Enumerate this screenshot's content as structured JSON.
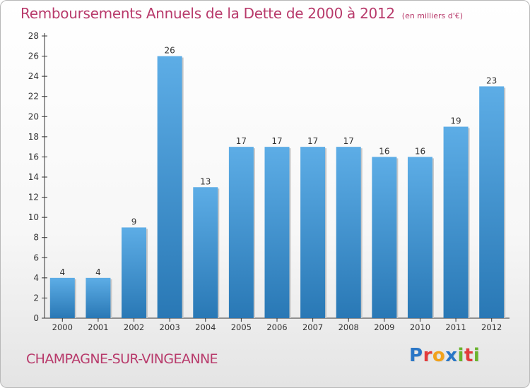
{
  "title": "Remboursements Annuels de la Dette de 2000 à 2012",
  "subtitle": "(en milliers d'€)",
  "commune": "CHAMPAGNE-SUR-VINGEANNE",
  "logo": {
    "text": "Proxiti",
    "letters": [
      {
        "char": "P",
        "color": "#2a76c6"
      },
      {
        "char": "r",
        "color": "#e23b3b"
      },
      {
        "char": "o",
        "color": "#f2a21b"
      },
      {
        "char": "x",
        "color": "#2a76c6"
      },
      {
        "char": "i",
        "color": "#6ab42d"
      },
      {
        "char": "t",
        "color": "#e23b3b"
      },
      {
        "char": "i",
        "color": "#6ab42d"
      }
    ]
  },
  "colors": {
    "accent": "#b83a6b",
    "bar_light": "#5dade6",
    "bar_dark": "#2978b5",
    "axis": "#333333"
  },
  "chart_data": {
    "type": "bar",
    "categories": [
      "2000",
      "2001",
      "2002",
      "2003",
      "2004",
      "2005",
      "2006",
      "2007",
      "2008",
      "2009",
      "2010",
      "2011",
      "2012"
    ],
    "values": [
      4,
      4,
      9,
      26,
      13,
      17,
      17,
      17,
      17,
      16,
      16,
      19,
      23
    ],
    "ylim": [
      0,
      28
    ],
    "yticks": [
      0,
      2,
      4,
      6,
      8,
      10,
      12,
      14,
      16,
      18,
      20,
      22,
      24,
      26,
      28
    ],
    "xlabel": "",
    "ylabel": "",
    "grid": false,
    "data_labels": true
  }
}
